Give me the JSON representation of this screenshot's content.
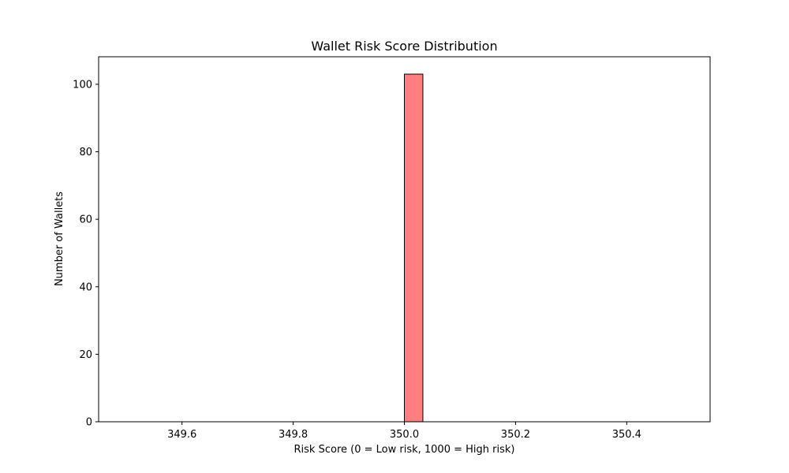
{
  "chart_data": {
    "type": "bar",
    "title": "Wallet Risk Score Distribution",
    "xlabel": "Risk Score (0 = Low risk, 1000 = High risk)",
    "ylabel": "Number of Wallets",
    "xlim": [
      349.45,
      350.55
    ],
    "ylim": [
      0,
      108.15
    ],
    "x_ticks": [
      349.6,
      349.8,
      350.0,
      350.2,
      350.4
    ],
    "x_tick_labels": [
      "349.6",
      "349.8",
      "350.0",
      "350.2",
      "350.4"
    ],
    "y_ticks": [
      0,
      20,
      40,
      60,
      80,
      100
    ],
    "y_tick_labels": [
      "0",
      "20",
      "40",
      "60",
      "80",
      "100"
    ],
    "bins": {
      "start": 349.5,
      "end": 350.5,
      "count": 30
    },
    "bars": [
      {
        "x0": 350.0,
        "x1": 350.0333,
        "value": 103
      }
    ],
    "grid": false,
    "legend": "none",
    "bar_color": "#ff7f7f",
    "edge_color": "#000000"
  }
}
